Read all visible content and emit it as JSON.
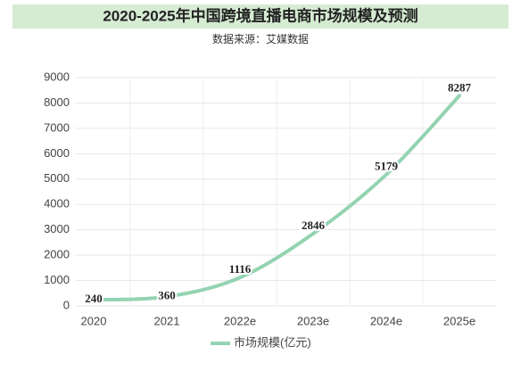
{
  "chart_data": {
    "type": "line",
    "title": "2020-2025年中国跨境直播电商市场规模及预测",
    "subtitle": "数据来源：艾媒数据",
    "categories": [
      "2020",
      "2021",
      "2022e",
      "2023e",
      "2024e",
      "2025e"
    ],
    "series": [
      {
        "name": "市场规模(亿元)",
        "color": "#93d3b1",
        "values": [
          240,
          360,
          1116,
          2846,
          5179,
          8287
        ]
      }
    ],
    "ylim": [
      0,
      9000
    ],
    "yticks": [
      0,
      1000,
      2000,
      3000,
      4000,
      5000,
      6000,
      7000,
      8000,
      9000
    ],
    "grid": true,
    "legend": "bottom"
  }
}
